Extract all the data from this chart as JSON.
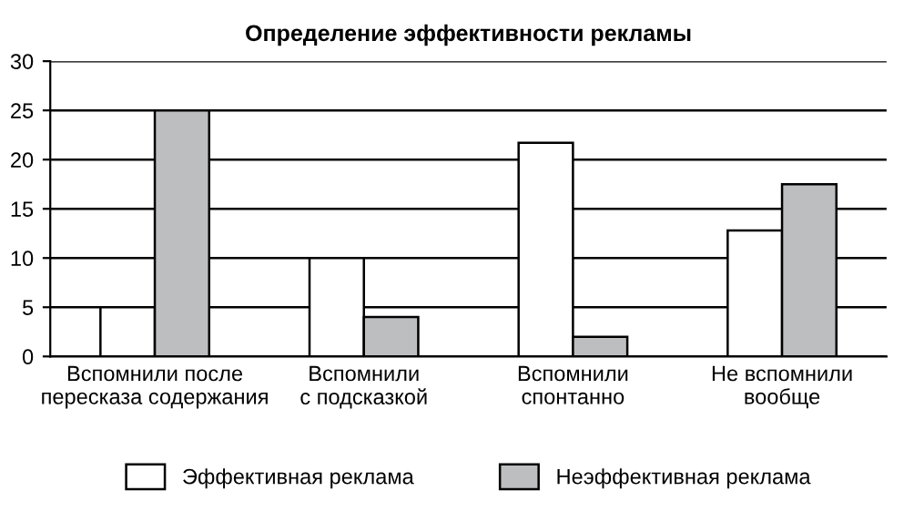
{
  "chart_data": {
    "type": "bar",
    "title": "Определение эффективности рекламы",
    "categories": [
      "Вспомнили после\nпересказа содержания",
      "Вспомнили\nс подсказкой",
      "Вспомнили\nспонтанно",
      "Не вспомнили\nвообще"
    ],
    "series": [
      {
        "name": "Эффективная реклама",
        "color": "#ffffff",
        "values": [
          5,
          10,
          21.7,
          12.8
        ]
      },
      {
        "name": "Неэффективная реклама",
        "color": "#bcbec0",
        "values": [
          25,
          4,
          2,
          17.5
        ]
      }
    ],
    "ylim": [
      0,
      30
    ],
    "yticks": [
      0,
      5,
      10,
      15,
      20,
      25,
      30
    ],
    "grid": "y",
    "legend": "bottom"
  }
}
